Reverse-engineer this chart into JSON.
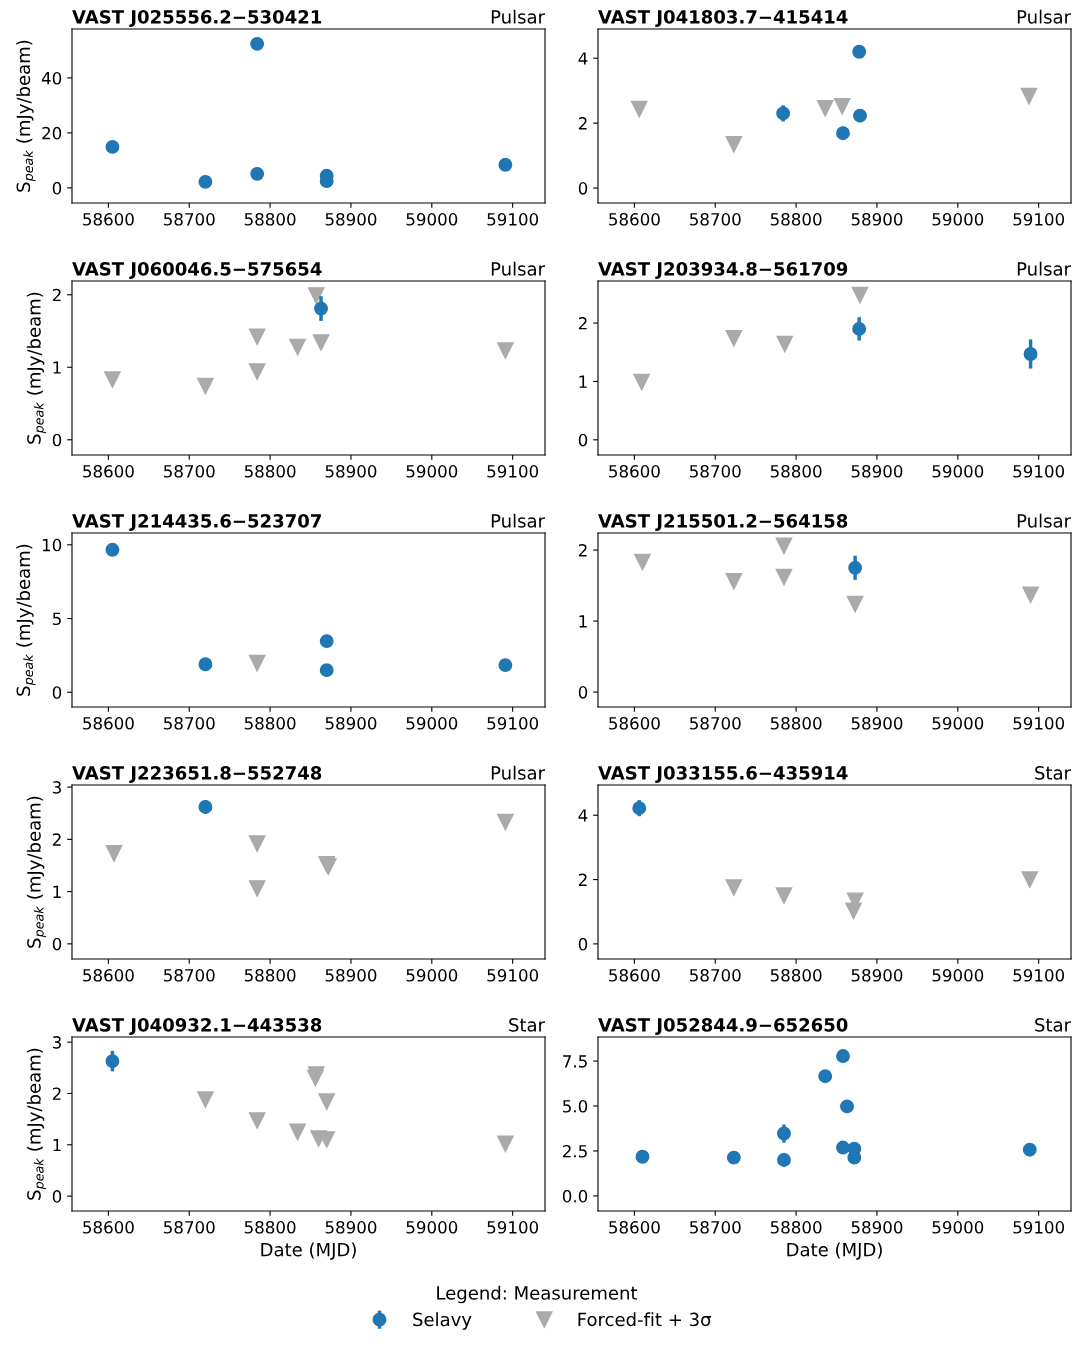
{
  "chart_data": [
    {
      "type": "scatter",
      "title": "VAST J025556.2−530421",
      "subtitle": "Pulsar",
      "ylabel": "S$_{peak}$ (mJy/beam)",
      "xlim": [
        58555,
        59140
      ],
      "xticks": [
        58600,
        58700,
        58800,
        58900,
        59000,
        59100
      ],
      "ylim": [
        -5.5,
        57.8
      ],
      "yticks": [
        0,
        20,
        40
      ],
      "legend": "bottom",
      "series": [
        {
          "name": "Selavy",
          "color": "#1f77b4",
          "marker": "circle",
          "x": [
            58605,
            58720,
            58784,
            58784,
            58870,
            58870,
            59091
          ],
          "values": [
            14.9,
            2.2,
            52.4,
            5.1,
            4.4,
            2.5,
            8.4
          ]
        }
      ]
    },
    {
      "type": "scatter",
      "title": "VAST J041803.7−415414",
      "subtitle": "Pulsar",
      "xlim": [
        58555,
        59140
      ],
      "xticks": [
        58600,
        58700,
        58800,
        58900,
        59000,
        59100
      ],
      "ylim": [
        -0.46,
        4.9
      ],
      "yticks": [
        0,
        2,
        4
      ],
      "legend": "bottom",
      "series": [
        {
          "name": "Selavy",
          "color": "#1f77b4",
          "marker": "circle",
          "x": [
            58784,
            58858,
            58878,
            58879
          ],
          "values": [
            2.3,
            1.69,
            4.2,
            2.23
          ],
          "errors": [
            0.25,
            0.2,
            0.15,
            0.2
          ]
        },
        {
          "name": "Forced-fit + 3σ",
          "color": "#aaaaaa",
          "marker": "triangle",
          "x": [
            58606,
            58723,
            58836,
            58857,
            59088
          ],
          "values": [
            2.43,
            1.35,
            2.46,
            2.52,
            2.83
          ]
        }
      ]
    },
    {
      "type": "scatter",
      "title": "VAST J060046.5−575654",
      "subtitle": "Pulsar",
      "ylabel": "S$_{peak}$ (mJy/beam)",
      "xlim": [
        58555,
        59140
      ],
      "xticks": [
        58600,
        58700,
        58800,
        58900,
        59000,
        59100
      ],
      "ylim": [
        -0.21,
        2.19
      ],
      "yticks": [
        0,
        1,
        2
      ],
      "legend": "bottom",
      "series": [
        {
          "name": "Forced-fit + 3σ",
          "color": "#aaaaaa",
          "marker": "triangle",
          "x": [
            58605,
            58720,
            58784,
            58784,
            58834,
            58857,
            58863,
            59091
          ],
          "values": [
            0.83,
            0.74,
            1.42,
            0.94,
            1.28,
            1.99,
            1.34,
            1.23
          ]
        },
        {
          "name": "Selavy",
          "color": "#1f77b4",
          "marker": "circle",
          "x": [
            58863
          ],
          "values": [
            1.81
          ],
          "errors": [
            0.17
          ]
        }
      ]
    },
    {
      "type": "scatter",
      "title": "VAST J203934.8−561709",
      "subtitle": "Pulsar",
      "xlim": [
        58555,
        59140
      ],
      "xticks": [
        58600,
        58700,
        58800,
        58900,
        59000,
        59100
      ],
      "ylim": [
        -0.26,
        2.72
      ],
      "yticks": [
        0,
        1,
        2
      ],
      "legend": "bottom",
      "series": [
        {
          "name": "Forced-fit + 3σ",
          "color": "#aaaaaa",
          "marker": "triangle",
          "x": [
            58609,
            58723,
            58786,
            58879
          ],
          "values": [
            0.99,
            1.74,
            1.64,
            2.48
          ]
        },
        {
          "name": "Selavy",
          "color": "#1f77b4",
          "marker": "circle",
          "x": [
            58878,
            59090
          ],
          "values": [
            1.9,
            1.47
          ],
          "errors": [
            0.2,
            0.25
          ]
        }
      ]
    },
    {
      "type": "scatter",
      "title": "VAST J214435.6−523707",
      "subtitle": "Pulsar",
      "ylabel": "S$_{peak}$ (mJy/beam)",
      "xlim": [
        58555,
        59140
      ],
      "xticks": [
        58600,
        58700,
        58800,
        58900,
        59000,
        59100
      ],
      "ylim": [
        -1.0,
        10.8
      ],
      "yticks": [
        0,
        5,
        10
      ],
      "legend": "bottom",
      "series": [
        {
          "name": "Selavy",
          "color": "#1f77b4",
          "marker": "circle",
          "x": [
            58605,
            58720,
            58870,
            58870,
            59091
          ],
          "values": [
            9.66,
            1.9,
            3.47,
            1.5,
            1.84
          ]
        },
        {
          "name": "Forced-fit + 3σ",
          "color": "#aaaaaa",
          "marker": "triangle",
          "x": [
            58784
          ],
          "values": [
            1.97
          ]
        }
      ]
    },
    {
      "type": "scatter",
      "title": "VAST J215501.2−564158",
      "subtitle": "Pulsar",
      "xlim": [
        58555,
        59140
      ],
      "xticks": [
        58600,
        58700,
        58800,
        58900,
        59000,
        59100
      ],
      "ylim": [
        -0.21,
        2.24
      ],
      "yticks": [
        0,
        1,
        2
      ],
      "legend": "bottom",
      "series": [
        {
          "name": "Forced-fit + 3σ",
          "color": "#aaaaaa",
          "marker": "triangle",
          "x": [
            58610,
            58723,
            58785,
            58785,
            58873,
            59090
          ],
          "values": [
            1.83,
            1.56,
            2.06,
            1.62,
            1.24,
            1.37
          ]
        },
        {
          "name": "Selavy",
          "color": "#1f77b4",
          "marker": "circle",
          "x": [
            58873
          ],
          "values": [
            1.75
          ],
          "errors": [
            0.17
          ]
        }
      ]
    },
    {
      "type": "scatter",
      "title": "VAST J223651.8−552748",
      "subtitle": "Pulsar",
      "ylabel": "S$_{peak}$ (mJy/beam)",
      "xlim": [
        58555,
        59140
      ],
      "xticks": [
        58600,
        58700,
        58800,
        58900,
        59000,
        59100
      ],
      "ylim": [
        -0.29,
        3.04
      ],
      "yticks": [
        0,
        1,
        2,
        3
      ],
      "legend": "bottom",
      "series": [
        {
          "name": "Selavy",
          "color": "#1f77b4",
          "marker": "circle",
          "x": [
            58720
          ],
          "values": [
            2.62
          ],
          "errors": [
            0.13
          ]
        },
        {
          "name": "Forced-fit + 3σ",
          "color": "#aaaaaa",
          "marker": "triangle",
          "x": [
            58607,
            58784,
            58784,
            58870,
            58872,
            59091
          ],
          "values": [
            1.73,
            1.92,
            1.06,
            1.52,
            1.48,
            2.33
          ]
        }
      ]
    },
    {
      "type": "scatter",
      "title": "VAST J033155.6−435914",
      "subtitle": "Star",
      "xlim": [
        58555,
        59140
      ],
      "xticks": [
        58600,
        58700,
        58800,
        58900,
        59000,
        59100
      ],
      "ylim": [
        -0.47,
        4.94
      ],
      "yticks": [
        0,
        2,
        4
      ],
      "legend": "bottom",
      "series": [
        {
          "name": "Selavy",
          "color": "#1f77b4",
          "marker": "circle",
          "x": [
            58606
          ],
          "values": [
            4.22
          ],
          "errors": [
            0.25
          ]
        },
        {
          "name": "Forced-fit + 3σ",
          "color": "#aaaaaa",
          "marker": "triangle",
          "x": [
            58723,
            58785,
            58873,
            58871,
            59089
          ],
          "values": [
            1.75,
            1.5,
            1.34,
            1.03,
            2.0
          ]
        }
      ]
    },
    {
      "type": "scatter",
      "title": "VAST J040932.1−443538",
      "subtitle": "Star",
      "ylabel": "S$_{peak}$ (mJy/beam)",
      "xlabel": "Date (MJD)",
      "xlim": [
        58555,
        59140
      ],
      "xticks": [
        58600,
        58700,
        58800,
        58900,
        59000,
        59100
      ],
      "ylim": [
        -0.29,
        3.1
      ],
      "yticks": [
        0,
        1,
        2,
        3
      ],
      "legend": "bottom",
      "series": [
        {
          "name": "Selavy",
          "color": "#1f77b4",
          "marker": "circle",
          "x": [
            58605
          ],
          "values": [
            2.63
          ],
          "errors": [
            0.2
          ]
        },
        {
          "name": "Forced-fit + 3σ",
          "color": "#aaaaaa",
          "marker": "triangle",
          "x": [
            58720,
            58784,
            58834,
            58857,
            58856,
            58870,
            58860,
            58870,
            59091
          ],
          "values": [
            1.88,
            1.47,
            1.25,
            2.37,
            2.3,
            1.84,
            1.12,
            1.1,
            1.02
          ]
        }
      ]
    },
    {
      "type": "scatter",
      "title": "VAST J052844.9−652650",
      "subtitle": "Star",
      "xlabel": "Date (MJD)",
      "xlim": [
        58555,
        59140
      ],
      "xticks": [
        58600,
        58700,
        58800,
        58900,
        59000,
        59100
      ],
      "ylim": [
        -0.84,
        8.84
      ],
      "yticks": [
        {
          "value": 0,
          "label": "0.0"
        },
        {
          "value": 2.5,
          "label": "2.5"
        },
        {
          "value": 5,
          "label": "5.0"
        },
        {
          "value": 7.5,
          "label": "7.5"
        }
      ],
      "legend": "bottom",
      "legend_title": "Legend: Measurement",
      "series": [
        {
          "name": "Selavy",
          "color": "#1f77b4",
          "marker": "circle",
          "x": [
            58610,
            58723,
            58785,
            58785,
            58836,
            58858,
            58863,
            58858,
            58872,
            58872,
            59089
          ],
          "values": [
            2.18,
            2.13,
            2.0,
            3.47,
            6.66,
            7.78,
            4.98,
            2.69,
            2.63,
            2.13,
            2.57
          ],
          "errors": [
            null,
            null,
            null,
            0.5,
            null,
            null,
            null,
            null,
            null,
            null,
            null
          ]
        }
      ]
    }
  ]
}
